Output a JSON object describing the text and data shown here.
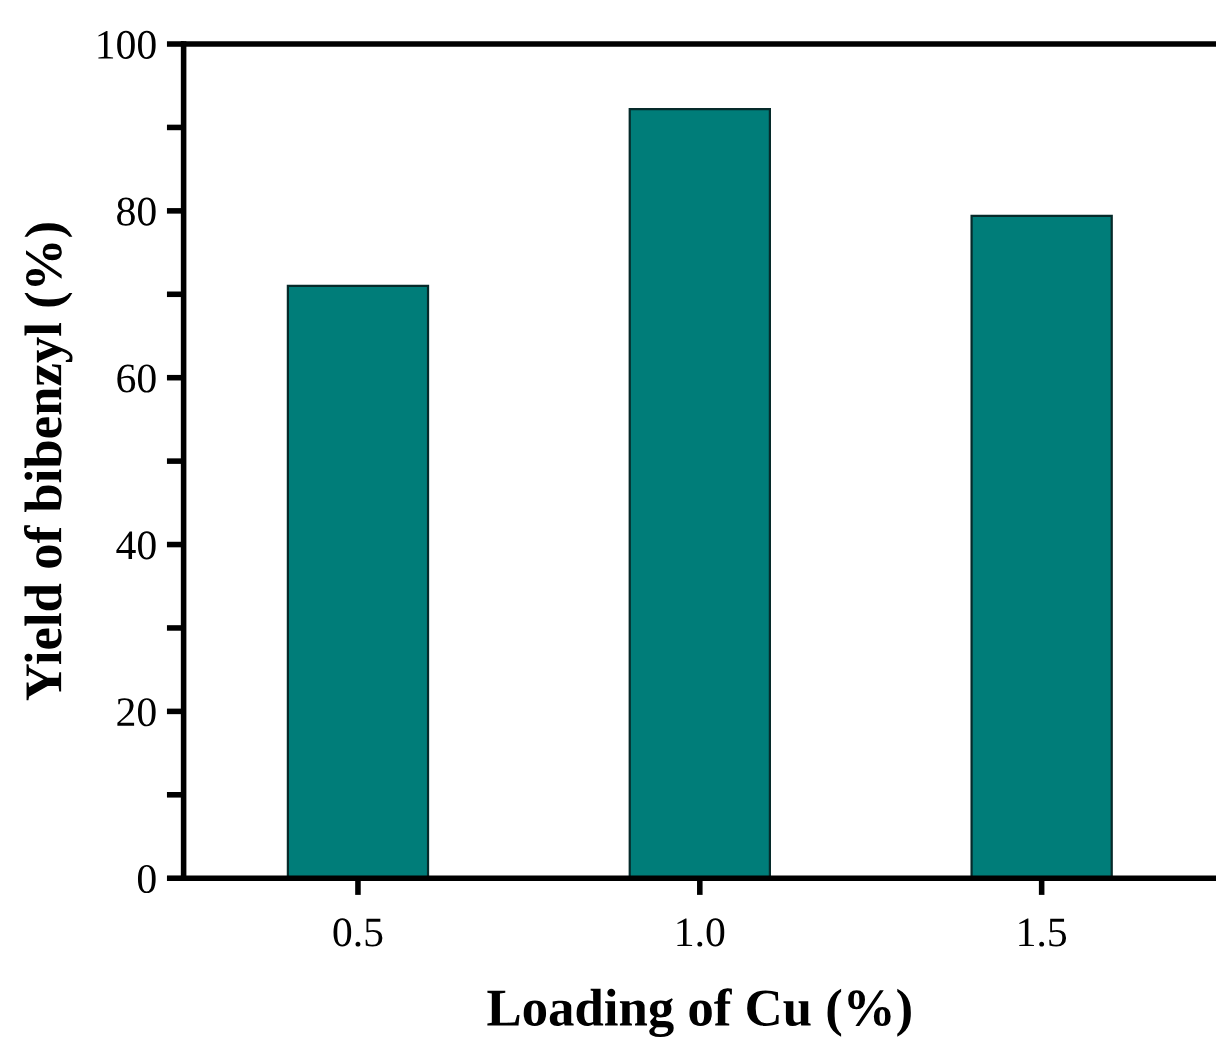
{
  "chart_data": {
    "type": "bar",
    "xlabel": "Loading of Cu (%)",
    "ylabel": "Yield of bibenzyl (%)",
    "categories": [
      "0.5",
      "1.0",
      "1.5"
    ],
    "values": [
      71,
      92.2,
      79.4
    ],
    "color": "#007d79",
    "ylim": [
      0,
      100
    ],
    "yticks": [
      0,
      {
        "value": 10,
        "label": null
      },
      20,
      {
        "value": 30,
        "label": null
      },
      40,
      {
        "value": 50,
        "label": null
      },
      60,
      {
        "value": 70,
        "label": null
      },
      80,
      {
        "value": 90,
        "label": null
      },
      100
    ],
    "grid": false,
    "legend": false
  }
}
